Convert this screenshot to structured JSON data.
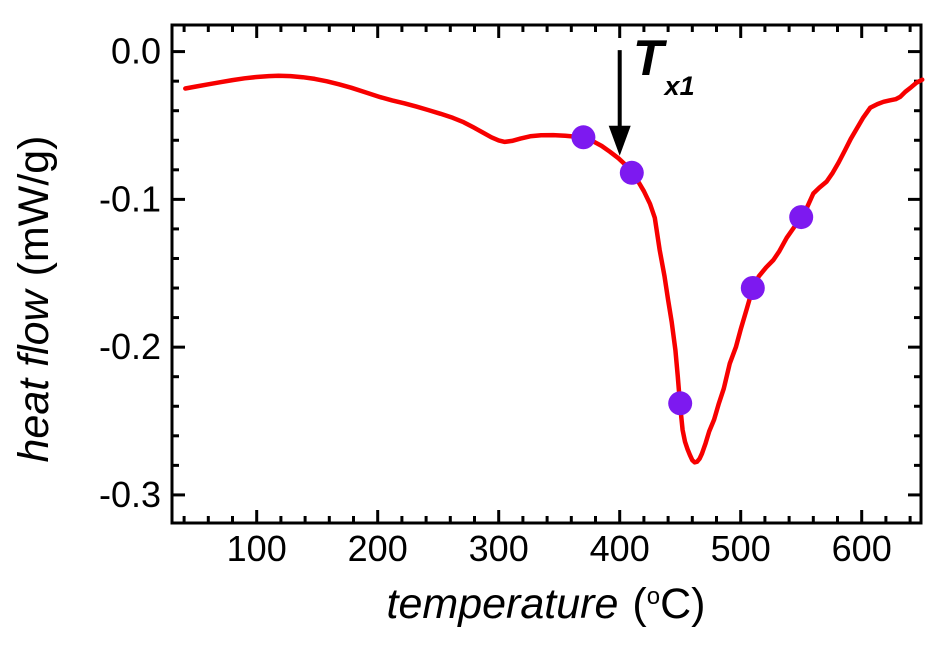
{
  "colors": {
    "background": "#ffffff",
    "axis": "#000000",
    "text": "#000000",
    "curve": "#f70000",
    "marker": "#7d19f0"
  },
  "chart_data": {
    "type": "line",
    "title": "",
    "xlabel": {
      "name": "temperature",
      "unit_open": "(",
      "unit_sup": "o",
      "unit_close": "C)"
    },
    "ylabel": {
      "name": "heat flow",
      "units": "(mW/g)"
    },
    "x_axis": {
      "range": [
        30,
        649
      ],
      "major_ticks": [
        100,
        200,
        300,
        400,
        500,
        600
      ],
      "tick_labels": [
        "100",
        "200",
        "300",
        "400",
        "500",
        "600"
      ],
      "minor_step": 20,
      "minor_start": 40,
      "minor_end": 640,
      "grid": false
    },
    "y_axis": {
      "range": [
        -0.319,
        0.018
      ],
      "major_ticks": [
        0,
        -0.1,
        -0.2,
        -0.3
      ],
      "tick_labels": [
        "0.0",
        "-0.1",
        "-0.2",
        "-0.3"
      ],
      "minor_step": 0.02,
      "minor_start": -0.3,
      "minor_end": -0.02,
      "grid": false
    },
    "series": [
      {
        "name": "heat-flow-curve",
        "color": "#f70000",
        "width": 4.5,
        "points": [
          [
            41,
            -0.025
          ],
          [
            50,
            -0.0236
          ],
          [
            60,
            -0.0221
          ],
          [
            70,
            -0.0207
          ],
          [
            80,
            -0.0193
          ],
          [
            90,
            -0.0181
          ],
          [
            100,
            -0.0172
          ],
          [
            110,
            -0.0166
          ],
          [
            118,
            -0.0164
          ],
          [
            128,
            -0.0166
          ],
          [
            138,
            -0.0173
          ],
          [
            148,
            -0.0185
          ],
          [
            158,
            -0.0201
          ],
          [
            168,
            -0.0221
          ],
          [
            178,
            -0.0244
          ],
          [
            190,
            -0.0276
          ],
          [
            202,
            -0.0308
          ],
          [
            212,
            -0.033
          ],
          [
            222,
            -0.035
          ],
          [
            232,
            -0.0372
          ],
          [
            242,
            -0.0396
          ],
          [
            252,
            -0.0421
          ],
          [
            262,
            -0.0448
          ],
          [
            271,
            -0.0478
          ],
          [
            279,
            -0.0512
          ],
          [
            287,
            -0.0548
          ],
          [
            294,
            -0.058
          ],
          [
            300,
            -0.0601
          ],
          [
            305,
            -0.0611
          ],
          [
            311,
            -0.0604
          ],
          [
            318,
            -0.0589
          ],
          [
            326,
            -0.0573
          ],
          [
            335,
            -0.0566
          ],
          [
            345,
            -0.0565
          ],
          [
            355,
            -0.057
          ],
          [
            364,
            -0.0576
          ],
          [
            370,
            -0.0582
          ],
          [
            377,
            -0.0603
          ],
          [
            385,
            -0.0638
          ],
          [
            392,
            -0.0678
          ],
          [
            399,
            -0.0722
          ],
          [
            405,
            -0.0768
          ],
          [
            410,
            -0.082
          ],
          [
            415,
            -0.0876
          ],
          [
            420,
            -0.0945
          ],
          [
            425,
            -0.103
          ],
          [
            429,
            -0.1125
          ],
          [
            433,
            -0.134
          ],
          [
            437,
            -0.152
          ],
          [
            440,
            -0.168
          ],
          [
            443,
            -0.183
          ],
          [
            446,
            -0.202
          ],
          [
            448,
            -0.22
          ],
          [
            450,
            -0.24
          ],
          [
            452,
            -0.256
          ],
          [
            454,
            -0.264
          ],
          [
            456,
            -0.269
          ],
          [
            458,
            -0.273
          ],
          [
            460,
            -0.2765
          ],
          [
            462,
            -0.278
          ],
          [
            464,
            -0.2775
          ],
          [
            466,
            -0.2755
          ],
          [
            468,
            -0.272
          ],
          [
            471,
            -0.265
          ],
          [
            474,
            -0.257
          ],
          [
            478,
            -0.249
          ],
          [
            482,
            -0.238
          ],
          [
            486,
            -0.228
          ],
          [
            491,
            -0.211
          ],
          [
            496,
            -0.2
          ],
          [
            500,
            -0.188
          ],
          [
            505,
            -0.174
          ],
          [
            510,
            -0.16
          ],
          [
            515,
            -0.152
          ],
          [
            521,
            -0.146
          ],
          [
            527,
            -0.141
          ],
          [
            532,
            -0.135
          ],
          [
            538,
            -0.126
          ],
          [
            544,
            -0.119
          ],
          [
            550,
            -0.112
          ],
          [
            555,
            -0.105
          ],
          [
            560,
            -0.096
          ],
          [
            565,
            -0.092
          ],
          [
            571,
            -0.088
          ],
          [
            576,
            -0.082
          ],
          [
            581,
            -0.075
          ],
          [
            586,
            -0.067
          ],
          [
            591,
            -0.059
          ],
          [
            596,
            -0.052
          ],
          [
            601,
            -0.045
          ],
          [
            607,
            -0.038
          ],
          [
            613,
            -0.0355
          ],
          [
            618,
            -0.034
          ],
          [
            623,
            -0.033
          ],
          [
            628,
            -0.0322
          ],
          [
            632,
            -0.0305
          ],
          [
            636,
            -0.0272
          ],
          [
            641,
            -0.024
          ],
          [
            645,
            -0.0212
          ],
          [
            650,
            -0.019
          ]
        ]
      }
    ],
    "markers": {
      "name": "crystallization-points",
      "color": "#7d19f0",
      "radius": 12,
      "points": [
        [
          370,
          -0.058
        ],
        [
          410,
          -0.082
        ],
        [
          450,
          -0.238
        ],
        [
          510,
          -0.16
        ],
        [
          550,
          -0.112
        ]
      ]
    },
    "annotation": {
      "symbol": "T",
      "subscript": "x1",
      "arrow_x": 400,
      "arrow_from_y": 0.001,
      "arrow_to_y": -0.0705
    }
  }
}
